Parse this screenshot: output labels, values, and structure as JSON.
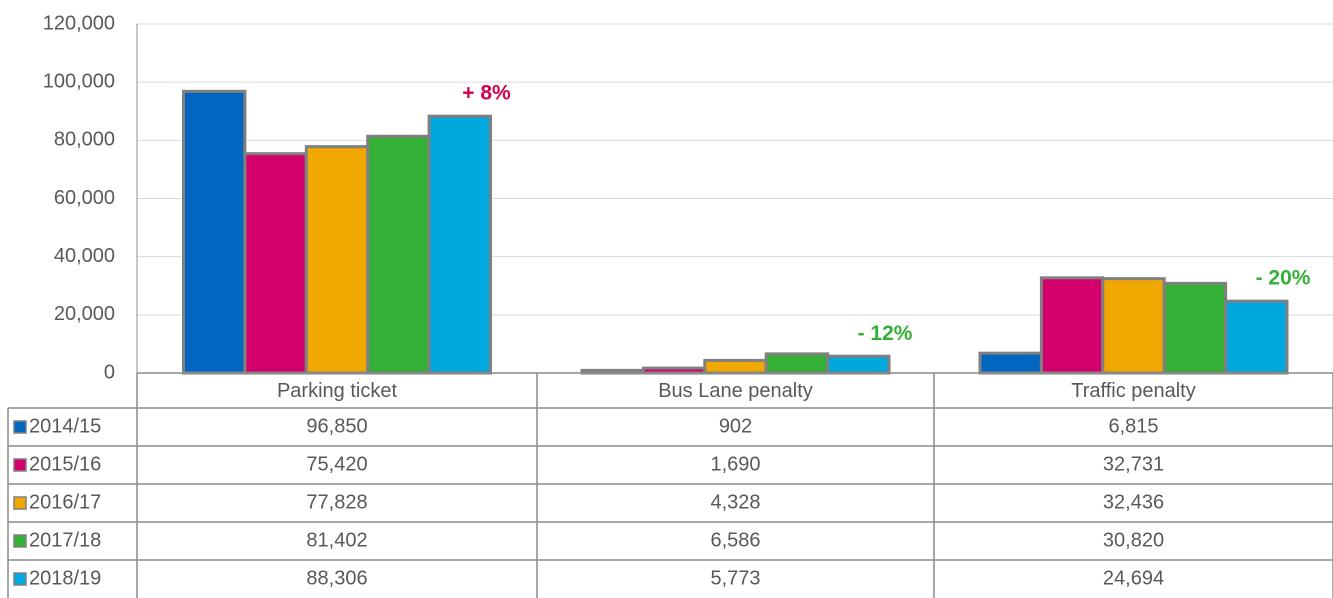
{
  "chart_data": {
    "type": "bar",
    "categories": [
      "Parking  ticket",
      "Bus Lane penalty",
      "Traffic  penalty"
    ],
    "series": [
      {
        "name": "2014/15",
        "color": "#0066bf",
        "values": [
          96850,
          902,
          6815
        ],
        "value_labels": [
          "96,850",
          "902",
          "6,815"
        ]
      },
      {
        "name": "2015/16",
        "color": "#d4006e",
        "values": [
          75420,
          1690,
          32731
        ],
        "value_labels": [
          "75,420",
          "1,690",
          "32,731"
        ]
      },
      {
        "name": "2016/17",
        "color": "#f0a800",
        "values": [
          77828,
          4328,
          32436
        ],
        "value_labels": [
          "77,828",
          "4,328",
          "32,436"
        ]
      },
      {
        "name": "2017/18",
        "color": "#33b035",
        "values": [
          81402,
          6586,
          30820
        ],
        "value_labels": [
          "81,402",
          "6,586",
          "30,820"
        ]
      },
      {
        "name": "2018/19",
        "color": "#00a8e0",
        "values": [
          88306,
          5773,
          24694
        ],
        "value_labels": [
          "88,306",
          "5,773",
          "24,694"
        ]
      }
    ],
    "annotations": [
      {
        "text": "+ 8%",
        "color": "#d4004f"
      },
      {
        "text": "- 12%",
        "color": "#33b035"
      },
      {
        "text": "- 20%",
        "color": "#33b035"
      }
    ],
    "ylim": [
      0,
      120000
    ],
    "yticks": [
      0,
      {
        "value": 20000,
        "label": "20,000"
      },
      {
        "value": 40000,
        "label": "40,000"
      },
      {
        "value": 60000,
        "label": "60,000"
      },
      {
        "value": 80000,
        "label": "80,000"
      },
      {
        "value": 100000,
        "label": "100,000"
      },
      {
        "value": 120000,
        "label": "120,000"
      }
    ],
    "grid": true
  }
}
